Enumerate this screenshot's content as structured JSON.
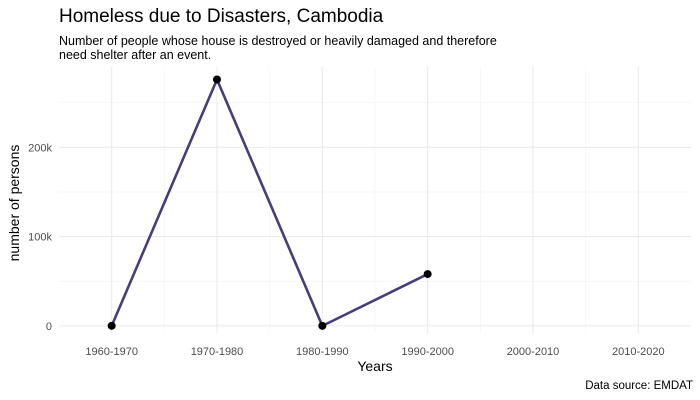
{
  "chart_data": {
    "type": "line",
    "title": "Homeless due to Disasters, Cambodia",
    "subtitle_lines": [
      "Number of people whose house is destroyed or heavily damaged and therefore",
      "need shelter after an event."
    ],
    "xlabel": "Years",
    "ylabel": "number of persons",
    "caption": "Data source: EMDAT",
    "categories": [
      "1960-1970",
      "1970-1980",
      "1980-1990",
      "1990-2000",
      "2000-2010",
      "2010-2020"
    ],
    "y_ticks": [
      {
        "value": 0,
        "label": "0"
      },
      {
        "value": 100000,
        "label": "100k"
      },
      {
        "value": 200000,
        "label": "200k"
      }
    ],
    "ylim": [
      -8000,
      290000
    ],
    "series": [
      {
        "name": "",
        "color": "#483d7a",
        "points": [
          {
            "x": "1960-1970",
            "y": 0
          },
          {
            "x": "1970-1980",
            "y": 276000
          },
          {
            "x": "1980-1990",
            "y": 0
          },
          {
            "x": "1990-2000",
            "y": 58000
          }
        ]
      }
    ],
    "grid": true,
    "legend": "none"
  }
}
